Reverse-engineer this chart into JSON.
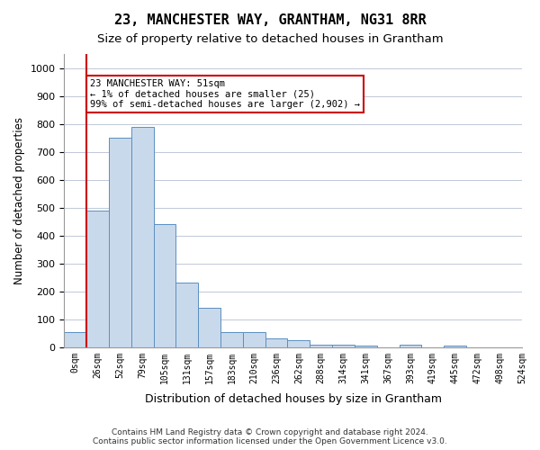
{
  "title": "23, MANCHESTER WAY, GRANTHAM, NG31 8RR",
  "subtitle": "Size of property relative to detached houses in Grantham",
  "xlabel": "Distribution of detached houses by size in Grantham",
  "ylabel": "Number of detached properties",
  "bar_color": "#c9d9ec",
  "bar_edge_color": "#5a8fc0",
  "grid_color": "#c0c8d8",
  "background_color": "#ffffff",
  "annotation_box_color": "#cc0000",
  "annotation_text": "23 MANCHESTER WAY: 51sqm\n← 1% of detached houses are smaller (25)\n99% of semi-detached houses are larger (2,902) →",
  "vline_x": 1,
  "vline_color": "#cc0000",
  "tick_labels": [
    "0sqm",
    "26sqm",
    "52sqm",
    "79sqm",
    "105sqm",
    "131sqm",
    "157sqm",
    "183sqm",
    "210sqm",
    "236sqm",
    "262sqm",
    "288sqm",
    "314sqm",
    "341sqm",
    "367sqm",
    "393sqm",
    "419sqm",
    "445sqm",
    "472sqm",
    "498sqm",
    "524sqm"
  ],
  "bar_values": [
    55,
    490,
    750,
    790,
    440,
    230,
    140,
    55,
    55,
    30,
    25,
    10,
    10,
    5,
    0,
    10,
    0,
    5,
    0,
    0
  ],
  "ylim": [
    0,
    1050
  ],
  "yticks": [
    0,
    100,
    200,
    300,
    400,
    500,
    600,
    700,
    800,
    900,
    1000
  ],
  "footer_text": "Contains HM Land Registry data © Crown copyright and database right 2024.\nContains public sector information licensed under the Open Government Licence v3.0.",
  "figsize": [
    6.0,
    5.0
  ],
  "dpi": 100
}
